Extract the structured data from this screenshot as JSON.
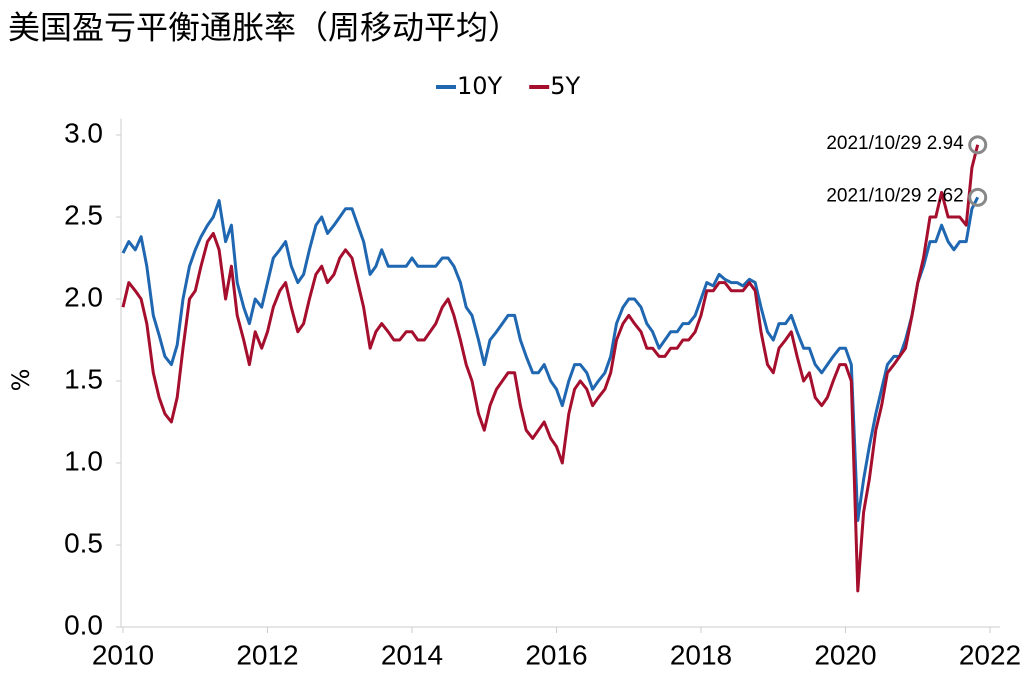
{
  "chart_data": {
    "type": "line",
    "title": "美国盈亏平衡通胀率（周移动平均）",
    "y_label": "%",
    "x": [
      2010,
      2010.08,
      2010.17,
      2010.25,
      2010.33,
      2010.42,
      2010.5,
      2010.58,
      2010.67,
      2010.75,
      2010.83,
      2010.92,
      2011,
      2011.08,
      2011.17,
      2011.25,
      2011.33,
      2011.42,
      2011.5,
      2011.58,
      2011.67,
      2011.75,
      2011.83,
      2011.92,
      2012,
      2012.08,
      2012.17,
      2012.25,
      2012.33,
      2012.42,
      2012.5,
      2012.58,
      2012.67,
      2012.75,
      2012.83,
      2012.92,
      2013,
      2013.08,
      2013.17,
      2013.25,
      2013.33,
      2013.42,
      2013.5,
      2013.58,
      2013.67,
      2013.75,
      2013.83,
      2013.92,
      2014,
      2014.08,
      2014.17,
      2014.25,
      2014.33,
      2014.42,
      2014.5,
      2014.58,
      2014.67,
      2014.75,
      2014.83,
      2014.92,
      2015,
      2015.08,
      2015.17,
      2015.25,
      2015.33,
      2015.42,
      2015.5,
      2015.58,
      2015.67,
      2015.75,
      2015.83,
      2015.92,
      2016,
      2016.08,
      2016.17,
      2016.25,
      2016.33,
      2016.42,
      2016.5,
      2016.58,
      2016.67,
      2016.75,
      2016.83,
      2016.92,
      2017,
      2017.08,
      2017.17,
      2017.25,
      2017.33,
      2017.42,
      2017.5,
      2017.58,
      2017.67,
      2017.75,
      2017.83,
      2017.92,
      2018,
      2018.08,
      2018.17,
      2018.25,
      2018.33,
      2018.42,
      2018.5,
      2018.58,
      2018.67,
      2018.75,
      2018.83,
      2018.92,
      2019,
      2019.08,
      2019.17,
      2019.25,
      2019.33,
      2019.42,
      2019.5,
      2019.58,
      2019.67,
      2019.75,
      2019.83,
      2019.92,
      2020,
      2020.08,
      2020.17,
      2020.25,
      2020.33,
      2020.42,
      2020.5,
      2020.58,
      2020.67,
      2020.75,
      2020.83,
      2020.92,
      2021,
      2021.08,
      2021.17,
      2021.25,
      2021.33,
      2021.42,
      2021.5,
      2021.58,
      2021.67,
      2021.75,
      2021.83
    ],
    "series": [
      {
        "name": "10Y",
        "color": "#1f67b1",
        "values": [
          2.28,
          2.35,
          2.3,
          2.38,
          2.2,
          1.9,
          1.78,
          1.65,
          1.6,
          1.72,
          2.0,
          2.2,
          2.3,
          2.38,
          2.45,
          2.5,
          2.6,
          2.35,
          2.45,
          2.1,
          1.95,
          1.85,
          2.0,
          1.95,
          2.1,
          2.25,
          2.3,
          2.35,
          2.2,
          2.1,
          2.15,
          2.3,
          2.45,
          2.5,
          2.4,
          2.45,
          2.5,
          2.55,
          2.55,
          2.45,
          2.35,
          2.15,
          2.2,
          2.3,
          2.2,
          2.2,
          2.2,
          2.2,
          2.25,
          2.2,
          2.2,
          2.2,
          2.2,
          2.25,
          2.25,
          2.2,
          2.1,
          1.95,
          1.9,
          1.75,
          1.6,
          1.75,
          1.8,
          1.85,
          1.9,
          1.9,
          1.75,
          1.65,
          1.55,
          1.55,
          1.6,
          1.5,
          1.45,
          1.35,
          1.5,
          1.6,
          1.6,
          1.55,
          1.45,
          1.5,
          1.55,
          1.65,
          1.85,
          1.95,
          2.0,
          2.0,
          1.95,
          1.85,
          1.8,
          1.7,
          1.75,
          1.8,
          1.8,
          1.85,
          1.85,
          1.9,
          2.0,
          2.1,
          2.08,
          2.15,
          2.12,
          2.1,
          2.1,
          2.08,
          2.12,
          2.1,
          1.95,
          1.8,
          1.75,
          1.85,
          1.85,
          1.9,
          1.8,
          1.7,
          1.7,
          1.6,
          1.55,
          1.6,
          1.65,
          1.7,
          1.7,
          1.6,
          0.65,
          0.9,
          1.1,
          1.3,
          1.45,
          1.6,
          1.65,
          1.65,
          1.75,
          1.9,
          2.1,
          2.2,
          2.35,
          2.35,
          2.45,
          2.35,
          2.3,
          2.35,
          2.35,
          2.55,
          2.62
        ]
      },
      {
        "name": "5Y",
        "color": "#a50f2d",
        "values": [
          1.95,
          2.1,
          2.05,
          2.0,
          1.85,
          1.55,
          1.4,
          1.3,
          1.25,
          1.4,
          1.7,
          2.0,
          2.05,
          2.2,
          2.35,
          2.4,
          2.3,
          2.0,
          2.2,
          1.9,
          1.75,
          1.6,
          1.8,
          1.7,
          1.8,
          1.95,
          2.05,
          2.1,
          1.95,
          1.8,
          1.85,
          2.0,
          2.15,
          2.2,
          2.1,
          2.15,
          2.25,
          2.3,
          2.25,
          2.1,
          1.95,
          1.7,
          1.8,
          1.85,
          1.8,
          1.75,
          1.75,
          1.8,
          1.8,
          1.75,
          1.75,
          1.8,
          1.85,
          1.95,
          2.0,
          1.9,
          1.75,
          1.6,
          1.5,
          1.3,
          1.2,
          1.35,
          1.45,
          1.5,
          1.55,
          1.55,
          1.35,
          1.2,
          1.15,
          1.2,
          1.25,
          1.15,
          1.1,
          1.0,
          1.3,
          1.45,
          1.5,
          1.45,
          1.35,
          1.4,
          1.45,
          1.55,
          1.75,
          1.85,
          1.9,
          1.85,
          1.8,
          1.7,
          1.7,
          1.65,
          1.65,
          1.7,
          1.7,
          1.75,
          1.75,
          1.8,
          1.9,
          2.05,
          2.05,
          2.1,
          2.1,
          2.05,
          2.05,
          2.05,
          2.1,
          2.05,
          1.8,
          1.6,
          1.55,
          1.7,
          1.75,
          1.8,
          1.65,
          1.5,
          1.55,
          1.4,
          1.35,
          1.4,
          1.5,
          1.6,
          1.6,
          1.5,
          0.22,
          0.7,
          0.9,
          1.2,
          1.35,
          1.55,
          1.6,
          1.65,
          1.7,
          1.9,
          2.1,
          2.25,
          2.5,
          2.5,
          2.65,
          2.5,
          2.5,
          2.5,
          2.45,
          2.8,
          2.94
        ]
      }
    ],
    "annotations": [
      "2021/10/29 2.94",
      "2021/10/29 2.62"
    ],
    "xlim": [
      2010,
      2022
    ],
    "xticks": [
      2010,
      2012,
      2014,
      2016,
      2018,
      2020,
      2022
    ],
    "ylim": [
      0,
      3.1
    ],
    "yticks": [
      {
        "value": 0,
        "label": "0.0"
      },
      0.5,
      {
        "value": 1,
        "label": "1.0"
      },
      1.5,
      {
        "value": 2,
        "label": "2.0"
      },
      2.5,
      {
        "value": 3,
        "label": "3.0"
      }
    ],
    "legend": "top"
  }
}
